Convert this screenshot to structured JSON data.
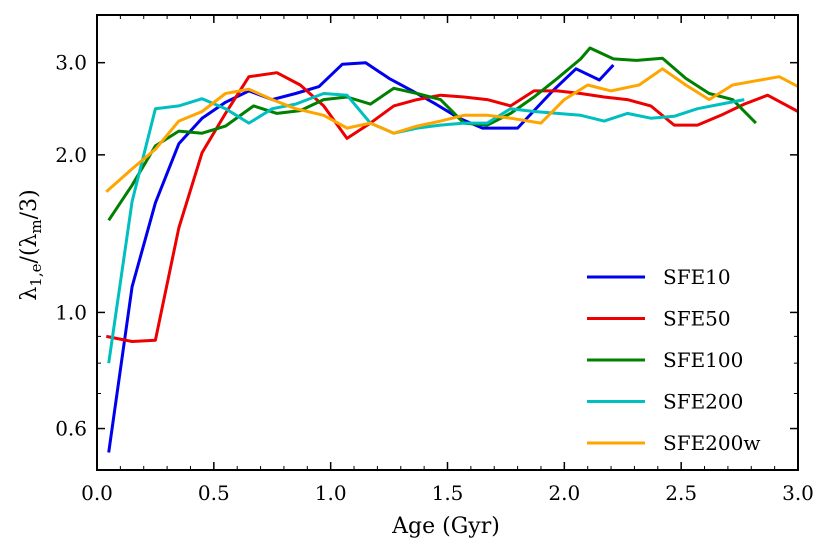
{
  "chart_data": {
    "type": "line",
    "title": "",
    "xlabel": "Age (Gyr)",
    "ylabel": "λ1,e/(λm/3)",
    "ylabel_parts": {
      "lambda": "λ",
      "sub": "1,e",
      "open": "/(",
      "lambda2": "λ",
      "sub2": "m",
      "close": "/3)"
    },
    "yscale": "log",
    "xlim": [
      0.0,
      3.0
    ],
    "ylim": [
      0.5,
      3.7
    ],
    "x_ticks": [
      0.0,
      0.5,
      1.0,
      1.5,
      2.0,
      2.5,
      3.0
    ],
    "x_tick_labels": [
      "0.0",
      "0.5",
      "1.0",
      "1.5",
      "2.0",
      "2.5",
      "3.0"
    ],
    "y_ticks": [
      0.6,
      1.0,
      2.0,
      3.0
    ],
    "y_tick_labels": [
      "0.6",
      "1.0",
      "2.0",
      "3.0"
    ],
    "y_minor_ticks": [
      0.7,
      0.8,
      0.9
    ],
    "legend_position": "lower-right",
    "series": [
      {
        "name": "SFE10",
        "color": "#0000ee",
        "x": [
          0.05,
          0.15,
          0.25,
          0.35,
          0.45,
          0.55,
          0.65,
          0.75,
          0.85,
          0.95,
          1.05,
          1.15,
          1.25,
          1.35,
          1.45,
          1.55,
          1.65,
          1.75,
          1.8,
          1.95,
          2.05,
          2.15,
          2.21
        ],
        "y": [
          0.54,
          1.12,
          1.62,
          2.1,
          2.35,
          2.52,
          2.65,
          2.55,
          2.62,
          2.7,
          2.98,
          3.0,
          2.8,
          2.65,
          2.5,
          2.35,
          2.25,
          2.25,
          2.25,
          2.65,
          2.92,
          2.78,
          2.97
        ]
      },
      {
        "name": "SFE50",
        "color": "#ee0000",
        "x": [
          0.04,
          0.15,
          0.25,
          0.35,
          0.45,
          0.55,
          0.65,
          0.77,
          0.87,
          0.97,
          1.07,
          1.17,
          1.27,
          1.37,
          1.47,
          1.57,
          1.67,
          1.77,
          1.87,
          1.97,
          2.07,
          2.17,
          2.27,
          2.37,
          2.47,
          2.57,
          2.67,
          2.77,
          2.87,
          3.0
        ],
        "y": [
          0.9,
          0.88,
          0.885,
          1.45,
          2.02,
          2.4,
          2.82,
          2.87,
          2.72,
          2.48,
          2.15,
          2.3,
          2.48,
          2.55,
          2.6,
          2.58,
          2.55,
          2.48,
          2.65,
          2.65,
          2.62,
          2.58,
          2.55,
          2.48,
          2.28,
          2.28,
          2.38,
          2.5,
          2.6,
          2.42
        ]
      },
      {
        "name": "SFE100",
        "color": "#008000",
        "x": [
          0.05,
          0.15,
          0.25,
          0.35,
          0.45,
          0.55,
          0.67,
          0.77,
          0.87,
          0.97,
          1.07,
          1.17,
          1.27,
          1.37,
          1.47,
          1.57,
          1.67,
          1.77,
          1.87,
          1.97,
          2.07,
          2.11,
          2.21,
          2.31,
          2.42,
          2.52,
          2.62,
          2.72,
          2.82
        ],
        "y": [
          1.5,
          1.75,
          2.08,
          2.22,
          2.2,
          2.27,
          2.48,
          2.4,
          2.43,
          2.55,
          2.58,
          2.5,
          2.68,
          2.62,
          2.55,
          2.3,
          2.28,
          2.4,
          2.58,
          2.8,
          3.05,
          3.2,
          3.05,
          3.03,
          3.06,
          2.8,
          2.62,
          2.55,
          2.3
        ]
      },
      {
        "name": "SFE200",
        "color": "#00bfbf",
        "x": [
          0.05,
          0.15,
          0.25,
          0.35,
          0.45,
          0.55,
          0.65,
          0.75,
          0.85,
          0.97,
          1.07,
          1.17,
          1.27,
          1.37,
          1.47,
          1.57,
          1.67,
          1.77,
          1.87,
          1.97,
          2.07,
          2.17,
          2.27,
          2.37,
          2.47,
          2.57,
          2.67,
          2.77
        ],
        "y": [
          0.8,
          1.63,
          2.45,
          2.48,
          2.56,
          2.45,
          2.3,
          2.45,
          2.5,
          2.62,
          2.6,
          2.3,
          2.2,
          2.25,
          2.28,
          2.3,
          2.3,
          2.45,
          2.42,
          2.4,
          2.38,
          2.32,
          2.4,
          2.35,
          2.37,
          2.45,
          2.5,
          2.55
        ]
      },
      {
        "name": "SFE200w",
        "color": "#ffa500",
        "x": [
          0.04,
          0.15,
          0.25,
          0.35,
          0.45,
          0.55,
          0.65,
          0.75,
          0.85,
          0.97,
          1.07,
          1.17,
          1.27,
          1.37,
          1.47,
          1.57,
          1.67,
          1.77,
          1.9,
          2.0,
          2.1,
          2.2,
          2.32,
          2.42,
          2.52,
          2.62,
          2.72,
          2.82,
          2.92,
          3.0
        ],
        "y": [
          1.7,
          1.88,
          2.05,
          2.32,
          2.42,
          2.62,
          2.67,
          2.55,
          2.45,
          2.38,
          2.25,
          2.3,
          2.2,
          2.27,
          2.32,
          2.38,
          2.38,
          2.35,
          2.3,
          2.55,
          2.72,
          2.65,
          2.72,
          2.92,
          2.72,
          2.55,
          2.72,
          2.77,
          2.82,
          2.7
        ]
      }
    ]
  }
}
